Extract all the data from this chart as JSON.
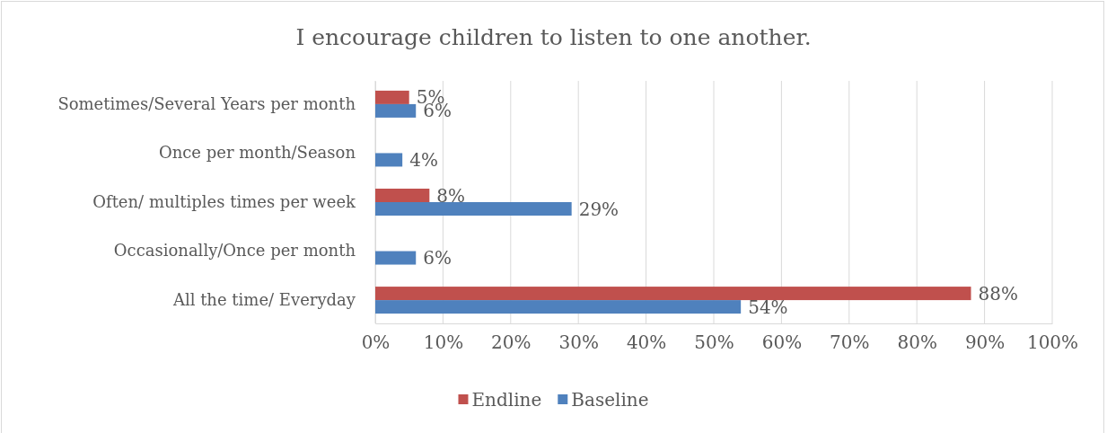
{
  "chart_data": {
    "type": "bar",
    "orientation": "horizontal",
    "title": "I encourage children to listen to one another.",
    "categories": [
      "Sometimes/Several Years per month",
      "Once per month/Season",
      "Often/ multiples times per week",
      "Occasionally/Once per month",
      "All the time/ Everyday"
    ],
    "series": [
      {
        "name": "Endline",
        "color": "#c0504d",
        "values": [
          5,
          null,
          8,
          null,
          88
        ],
        "value_labels": [
          "5%",
          null,
          "8%",
          null,
          "88%"
        ]
      },
      {
        "name": "Baseline",
        "color": "#4f81bd",
        "values": [
          6,
          4,
          29,
          6,
          54
        ],
        "value_labels": [
          "6%",
          "4%",
          "29%",
          "6%",
          "54%"
        ]
      }
    ],
    "xlim": [
      0,
      100
    ],
    "xticks": [
      {
        "value": 0,
        "label": "0%"
      },
      {
        "value": 10,
        "label": "10%"
      },
      {
        "value": 20,
        "label": "20%"
      },
      {
        "value": 30,
        "label": "30%"
      },
      {
        "value": 40,
        "label": "40%"
      },
      {
        "value": 50,
        "label": "50%"
      },
      {
        "value": 60,
        "label": "60%"
      },
      {
        "value": 70,
        "label": "70%"
      },
      {
        "value": 80,
        "label": "80%"
      },
      {
        "value": 90,
        "label": "90%"
      },
      {
        "value": 100,
        "label": "100%"
      }
    ],
    "grid": "x",
    "legend": "bottom"
  }
}
